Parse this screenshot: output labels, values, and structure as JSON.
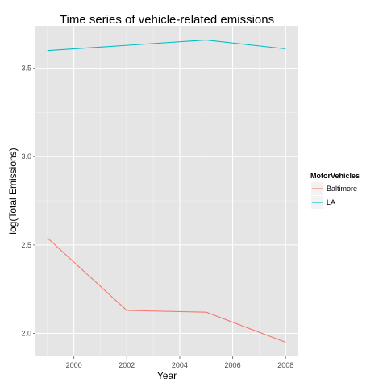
{
  "chart_data": {
    "type": "line",
    "title": "Time series of vehicle-related emissions",
    "xlabel": "Year",
    "ylabel": "log(Total Emissions)",
    "x": [
      1999,
      2002,
      2005,
      2008
    ],
    "series": [
      {
        "name": "Baltimore",
        "color": "#F8766D",
        "values": [
          2.54,
          2.13,
          2.12,
          1.95
        ]
      },
      {
        "name": "LA",
        "color": "#00BFC4",
        "values": [
          3.6,
          3.63,
          3.66,
          3.61
        ]
      }
    ],
    "xlim": [
      1998.55,
      2008.45
    ],
    "ylim": [
      1.87,
      3.74
    ],
    "xticks": [
      2000,
      2002,
      2004,
      2006,
      2008
    ],
    "yticks": [
      2.0,
      2.5,
      3.0,
      3.5
    ],
    "ytick_labels": [
      "2.0",
      "2.5",
      "3.0",
      "3.5"
    ],
    "grid": true,
    "legend": {
      "title": "MotorVehicles",
      "placement": "right"
    },
    "colors": {
      "panel": "#E5E5E5",
      "grid_major": "#FFFFFF",
      "grid_minor": "#F2F2F2"
    }
  }
}
